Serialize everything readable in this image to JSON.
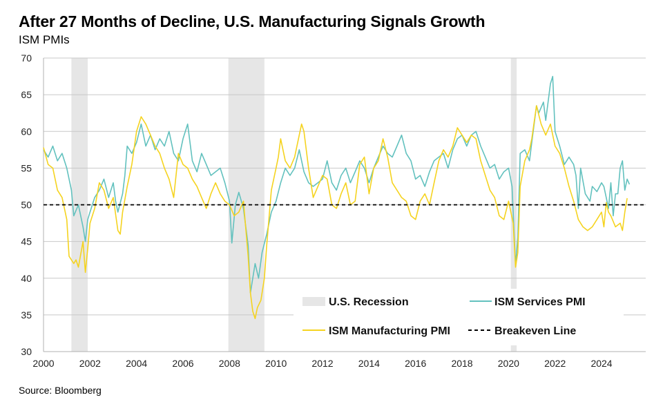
{
  "header": {
    "title": "After 27 Months of Decline, U.S. Manufacturing Signals Growth",
    "subtitle": "ISM PMIs"
  },
  "footer": {
    "source": "Source: Bloomberg"
  },
  "colors": {
    "services": "#62c1be",
    "manufacturing": "#f5d31f",
    "recession": "#e6e6e6",
    "breakeven": "#000000",
    "grid": "#c8c8c8"
  },
  "chart_data": {
    "type": "line",
    "title": "After 27 Months of Decline, U.S. Manufacturing Signals Growth",
    "subtitle": "ISM PMIs",
    "xlabel": "",
    "ylabel": "",
    "xlim": [
      2000,
      2025.9
    ],
    "ylim": [
      30,
      70
    ],
    "yticks": [
      30,
      35,
      40,
      45,
      50,
      55,
      60,
      65,
      70
    ],
    "xticks": [
      "2000",
      "2002",
      "2004",
      "2006",
      "2008",
      "2010",
      "2012",
      "2014",
      "2016",
      "2018",
      "2020",
      "2022",
      "2024"
    ],
    "grid": true,
    "legend_position": "bottom-right",
    "legend": {
      "recession": "U.S. Recession",
      "services": "ISM Services PMI",
      "manufacturing": "ISM Manufacturing PMI",
      "breakeven": "Breakeven Line"
    },
    "recessions": [
      {
        "start": 2001.2,
        "end": 2001.9
      },
      {
        "start": 2007.95,
        "end": 2009.5
      },
      {
        "start": 2020.1,
        "end": 2020.35
      }
    ],
    "breakeven": 50,
    "series": [
      {
        "name": "ISM Services PMI",
        "points": [
          [
            2000.0,
            57.5
          ],
          [
            2000.2,
            56.5
          ],
          [
            2000.4,
            58.0
          ],
          [
            2000.6,
            56.0
          ],
          [
            2000.8,
            57.0
          ],
          [
            2001.0,
            55.0
          ],
          [
            2001.2,
            52.0
          ],
          [
            2001.3,
            48.5
          ],
          [
            2001.5,
            50.0
          ],
          [
            2001.7,
            47.0
          ],
          [
            2001.8,
            45.0
          ],
          [
            2001.9,
            48.0
          ],
          [
            2002.0,
            49.0
          ],
          [
            2002.2,
            51.0
          ],
          [
            2002.4,
            52.0
          ],
          [
            2002.6,
            53.5
          ],
          [
            2002.8,
            51.0
          ],
          [
            2003.0,
            53.0
          ],
          [
            2003.1,
            50.5
          ],
          [
            2003.2,
            49.0
          ],
          [
            2003.4,
            51.5
          ],
          [
            2003.5,
            54.0
          ],
          [
            2003.6,
            58.0
          ],
          [
            2003.8,
            57.0
          ],
          [
            2004.0,
            58.5
          ],
          [
            2004.2,
            61.0
          ],
          [
            2004.4,
            58.0
          ],
          [
            2004.6,
            59.5
          ],
          [
            2004.8,
            57.5
          ],
          [
            2005.0,
            59.0
          ],
          [
            2005.2,
            58.0
          ],
          [
            2005.4,
            60.0
          ],
          [
            2005.6,
            57.0
          ],
          [
            2005.8,
            56.0
          ],
          [
            2006.0,
            59.0
          ],
          [
            2006.2,
            61.0
          ],
          [
            2006.4,
            56.0
          ],
          [
            2006.6,
            54.5
          ],
          [
            2006.8,
            57.0
          ],
          [
            2007.0,
            55.5
          ],
          [
            2007.2,
            54.0
          ],
          [
            2007.4,
            54.5
          ],
          [
            2007.6,
            55.0
          ],
          [
            2007.8,
            53.0
          ],
          [
            2008.0,
            50.5
          ],
          [
            2008.1,
            44.8
          ],
          [
            2008.25,
            50.0
          ],
          [
            2008.4,
            51.7
          ],
          [
            2008.6,
            49.5
          ],
          [
            2008.8,
            44.5
          ],
          [
            2008.9,
            38.0
          ],
          [
            2009.0,
            40.0
          ],
          [
            2009.1,
            42.0
          ],
          [
            2009.25,
            40.0
          ],
          [
            2009.4,
            43.5
          ],
          [
            2009.6,
            46.0
          ],
          [
            2009.8,
            49.0
          ],
          [
            2010.0,
            50.5
          ],
          [
            2010.2,
            53.0
          ],
          [
            2010.4,
            55.0
          ],
          [
            2010.6,
            54.0
          ],
          [
            2010.8,
            55.0
          ],
          [
            2011.0,
            57.5
          ],
          [
            2011.2,
            54.5
          ],
          [
            2011.4,
            53.0
          ],
          [
            2011.6,
            52.5
          ],
          [
            2011.8,
            53.0
          ],
          [
            2012.0,
            53.5
          ],
          [
            2012.2,
            56.0
          ],
          [
            2012.4,
            53.0
          ],
          [
            2012.6,
            52.0
          ],
          [
            2012.8,
            54.0
          ],
          [
            2013.0,
            55.0
          ],
          [
            2013.2,
            53.0
          ],
          [
            2013.4,
            54.5
          ],
          [
            2013.6,
            56.0
          ],
          [
            2013.8,
            55.0
          ],
          [
            2014.0,
            53.0
          ],
          [
            2014.2,
            55.0
          ],
          [
            2014.4,
            56.5
          ],
          [
            2014.6,
            58.0
          ],
          [
            2014.8,
            57.0
          ],
          [
            2015.0,
            56.5
          ],
          [
            2015.2,
            58.0
          ],
          [
            2015.4,
            59.5
          ],
          [
            2015.6,
            57.0
          ],
          [
            2015.8,
            56.0
          ],
          [
            2016.0,
            53.5
          ],
          [
            2016.2,
            54.0
          ],
          [
            2016.4,
            52.5
          ],
          [
            2016.6,
            54.5
          ],
          [
            2016.8,
            56.0
          ],
          [
            2017.0,
            56.5
          ],
          [
            2017.2,
            57.0
          ],
          [
            2017.4,
            55.0
          ],
          [
            2017.6,
            57.5
          ],
          [
            2017.8,
            59.0
          ],
          [
            2018.0,
            59.5
          ],
          [
            2018.2,
            58.0
          ],
          [
            2018.4,
            59.5
          ],
          [
            2018.6,
            60.0
          ],
          [
            2018.8,
            58.0
          ],
          [
            2019.0,
            56.5
          ],
          [
            2019.2,
            55.0
          ],
          [
            2019.4,
            55.5
          ],
          [
            2019.6,
            53.5
          ],
          [
            2019.8,
            54.5
          ],
          [
            2020.0,
            55.0
          ],
          [
            2020.15,
            52.5
          ],
          [
            2020.3,
            41.8
          ],
          [
            2020.4,
            45.5
          ],
          [
            2020.5,
            57.0
          ],
          [
            2020.7,
            57.5
          ],
          [
            2020.9,
            56.0
          ],
          [
            2021.0,
            58.5
          ],
          [
            2021.2,
            63.5
          ],
          [
            2021.3,
            62.5
          ],
          [
            2021.5,
            64.0
          ],
          [
            2021.6,
            61.5
          ],
          [
            2021.8,
            66.5
          ],
          [
            2021.9,
            67.5
          ],
          [
            2022.0,
            60.0
          ],
          [
            2022.2,
            58.0
          ],
          [
            2022.4,
            55.5
          ],
          [
            2022.6,
            56.5
          ],
          [
            2022.8,
            55.5
          ],
          [
            2022.9,
            54.0
          ],
          [
            2023.0,
            49.5
          ],
          [
            2023.1,
            55.0
          ],
          [
            2023.3,
            51.5
          ],
          [
            2023.5,
            50.5
          ],
          [
            2023.6,
            52.5
          ],
          [
            2023.8,
            51.8
          ],
          [
            2024.0,
            53.0
          ],
          [
            2024.1,
            52.5
          ],
          [
            2024.2,
            51.0
          ],
          [
            2024.3,
            49.5
          ],
          [
            2024.4,
            53.0
          ],
          [
            2024.5,
            48.5
          ],
          [
            2024.6,
            51.5
          ],
          [
            2024.7,
            51.5
          ],
          [
            2024.8,
            55.0
          ],
          [
            2024.9,
            56.0
          ],
          [
            2025.0,
            52.0
          ],
          [
            2025.1,
            53.5
          ],
          [
            2025.2,
            52.8
          ]
        ]
      },
      {
        "name": "ISM Manufacturing PMI",
        "points": [
          [
            2000.0,
            57.8
          ],
          [
            2000.2,
            55.5
          ],
          [
            2000.4,
            55.0
          ],
          [
            2000.6,
            52.0
          ],
          [
            2000.8,
            51.0
          ],
          [
            2001.0,
            48.0
          ],
          [
            2001.1,
            43.0
          ],
          [
            2001.2,
            42.5
          ],
          [
            2001.3,
            42.0
          ],
          [
            2001.4,
            42.5
          ],
          [
            2001.5,
            41.5
          ],
          [
            2001.7,
            45.0
          ],
          [
            2001.8,
            40.8
          ],
          [
            2001.9,
            44.0
          ],
          [
            2002.0,
            47.5
          ],
          [
            2002.2,
            49.5
          ],
          [
            2002.4,
            53.0
          ],
          [
            2002.6,
            52.0
          ],
          [
            2002.8,
            49.5
          ],
          [
            2003.0,
            51.0
          ],
          [
            2003.2,
            46.5
          ],
          [
            2003.3,
            46.0
          ],
          [
            2003.4,
            49.0
          ],
          [
            2003.6,
            52.5
          ],
          [
            2003.8,
            55.5
          ],
          [
            2004.0,
            60.0
          ],
          [
            2004.2,
            62.0
          ],
          [
            2004.4,
            61.0
          ],
          [
            2004.6,
            59.5
          ],
          [
            2004.8,
            58.0
          ],
          [
            2005.0,
            57.0
          ],
          [
            2005.2,
            55.0
          ],
          [
            2005.4,
            53.5
          ],
          [
            2005.6,
            51.0
          ],
          [
            2005.8,
            57.0
          ],
          [
            2006.0,
            55.5
          ],
          [
            2006.2,
            55.0
          ],
          [
            2006.4,
            53.5
          ],
          [
            2006.6,
            52.5
          ],
          [
            2006.8,
            51.0
          ],
          [
            2007.0,
            49.5
          ],
          [
            2007.2,
            51.5
          ],
          [
            2007.4,
            53.0
          ],
          [
            2007.6,
            51.5
          ],
          [
            2007.8,
            50.5
          ],
          [
            2008.0,
            50.0
          ],
          [
            2008.2,
            48.5
          ],
          [
            2008.4,
            49.0
          ],
          [
            2008.6,
            50.5
          ],
          [
            2008.8,
            43.0
          ],
          [
            2008.9,
            38.0
          ],
          [
            2009.0,
            35.5
          ],
          [
            2009.1,
            34.5
          ],
          [
            2009.2,
            36.0
          ],
          [
            2009.35,
            37.0
          ],
          [
            2009.5,
            40.0
          ],
          [
            2009.6,
            44.5
          ],
          [
            2009.8,
            52.0
          ],
          [
            2010.0,
            55.0
          ],
          [
            2010.1,
            56.5
          ],
          [
            2010.2,
            59.0
          ],
          [
            2010.4,
            56.0
          ],
          [
            2010.6,
            55.0
          ],
          [
            2010.8,
            56.5
          ],
          [
            2011.0,
            59.5
          ],
          [
            2011.1,
            61.0
          ],
          [
            2011.2,
            60.0
          ],
          [
            2011.4,
            55.0
          ],
          [
            2011.6,
            51.0
          ],
          [
            2011.8,
            52.5
          ],
          [
            2012.0,
            54.0
          ],
          [
            2012.2,
            53.5
          ],
          [
            2012.4,
            50.0
          ],
          [
            2012.6,
            49.5
          ],
          [
            2012.8,
            51.5
          ],
          [
            2013.0,
            53.0
          ],
          [
            2013.2,
            50.0
          ],
          [
            2013.4,
            50.5
          ],
          [
            2013.6,
            55.5
          ],
          [
            2013.8,
            56.5
          ],
          [
            2014.0,
            51.5
          ],
          [
            2014.2,
            55.0
          ],
          [
            2014.4,
            56.0
          ],
          [
            2014.6,
            59.0
          ],
          [
            2014.8,
            56.5
          ],
          [
            2015.0,
            53.0
          ],
          [
            2015.2,
            52.0
          ],
          [
            2015.4,
            51.0
          ],
          [
            2015.6,
            50.5
          ],
          [
            2015.8,
            48.5
          ],
          [
            2016.0,
            48.0
          ],
          [
            2016.2,
            50.5
          ],
          [
            2016.4,
            51.5
          ],
          [
            2016.6,
            50.0
          ],
          [
            2016.8,
            53.0
          ],
          [
            2017.0,
            56.0
          ],
          [
            2017.2,
            57.5
          ],
          [
            2017.4,
            56.5
          ],
          [
            2017.6,
            58.0
          ],
          [
            2017.8,
            60.5
          ],
          [
            2018.0,
            59.5
          ],
          [
            2018.2,
            58.5
          ],
          [
            2018.4,
            59.5
          ],
          [
            2018.6,
            59.0
          ],
          [
            2018.8,
            56.0
          ],
          [
            2019.0,
            54.0
          ],
          [
            2019.2,
            52.0
          ],
          [
            2019.4,
            51.0
          ],
          [
            2019.6,
            48.5
          ],
          [
            2019.8,
            48.0
          ],
          [
            2020.0,
            50.5
          ],
          [
            2020.1,
            49.0
          ],
          [
            2020.2,
            47.5
          ],
          [
            2020.3,
            41.5
          ],
          [
            2020.4,
            43.5
          ],
          [
            2020.5,
            52.5
          ],
          [
            2020.7,
            56.0
          ],
          [
            2020.9,
            57.5
          ],
          [
            2021.0,
            59.0
          ],
          [
            2021.2,
            63.5
          ],
          [
            2021.4,
            61.0
          ],
          [
            2021.6,
            59.5
          ],
          [
            2021.8,
            61.0
          ],
          [
            2022.0,
            58.0
          ],
          [
            2022.2,
            57.0
          ],
          [
            2022.4,
            55.0
          ],
          [
            2022.6,
            52.5
          ],
          [
            2022.8,
            50.5
          ],
          [
            2023.0,
            48.0
          ],
          [
            2023.2,
            47.0
          ],
          [
            2023.4,
            46.5
          ],
          [
            2023.6,
            47.0
          ],
          [
            2023.8,
            48.0
          ],
          [
            2024.0,
            49.0
          ],
          [
            2024.1,
            47.0
          ],
          [
            2024.2,
            50.3
          ],
          [
            2024.3,
            49.0
          ],
          [
            2024.4,
            48.5
          ],
          [
            2024.6,
            47.0
          ],
          [
            2024.8,
            47.5
          ],
          [
            2024.9,
            46.5
          ],
          [
            2025.0,
            49.0
          ],
          [
            2025.1,
            50.9
          ]
        ]
      }
    ]
  }
}
